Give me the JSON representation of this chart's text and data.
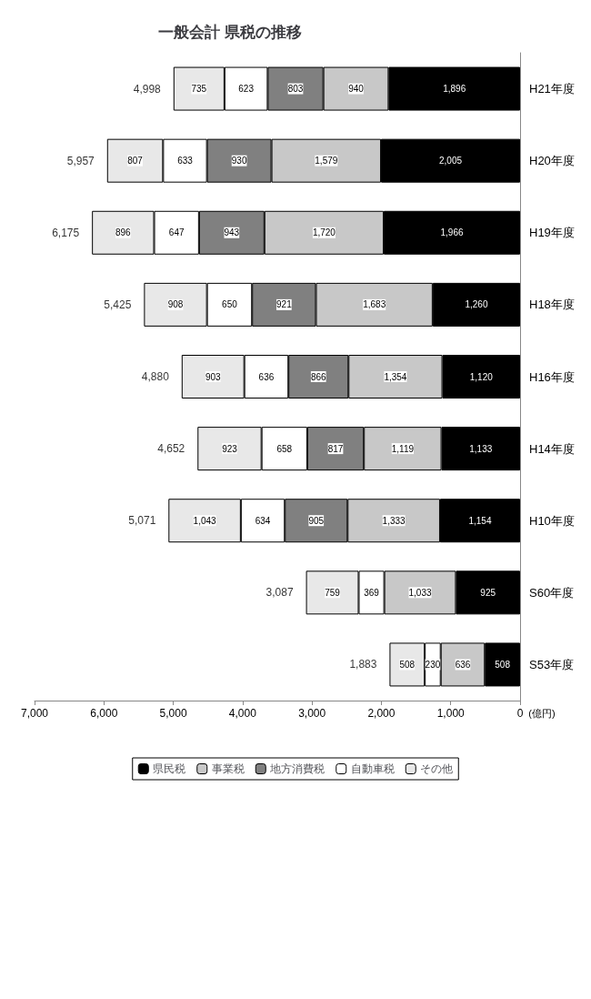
{
  "chart_data": {
    "type": "bar",
    "orientation": "horizontal",
    "title": "一般会計 県税の推移",
    "xlabel": "(億円)",
    "categories": [
      "H21年度",
      "H20年度",
      "H19年度",
      "H18年度",
      "H16年度",
      "H14年度",
      "H10年度",
      "S60年度",
      "S53年度"
    ],
    "series": [
      {
        "name": "県民税",
        "color": "#000000",
        "values": [
          1896,
          2005,
          1966,
          1260,
          1120,
          1133,
          1154,
          925,
          508
        ],
        "value_labels": [
          "1,896",
          "2,005",
          "1,966",
          "1,260",
          "1,120",
          "1,133",
          "1,154",
          "925",
          "508"
        ]
      },
      {
        "name": "事業税",
        "color": "#c8c8c8",
        "values": [
          940,
          1579,
          1720,
          1683,
          1354,
          1119,
          1333,
          1033,
          636
        ],
        "value_labels": [
          "940",
          "1,579",
          "1,720",
          "1,683",
          "1,354",
          "1,119",
          "1,333",
          "1,033",
          "636"
        ]
      },
      {
        "name": "地方消費税",
        "color": "#808080",
        "values": [
          803,
          930,
          943,
          921,
          866,
          817,
          905,
          null,
          null
        ],
        "value_labels": [
          "803",
          "930",
          "943",
          "921",
          "866",
          "817",
          "905",
          null,
          null
        ]
      },
      {
        "name": "自動車税",
        "color": "#ffffff",
        "values": [
          623,
          633,
          647,
          650,
          636,
          658,
          634,
          369,
          230
        ],
        "value_labels": [
          "623",
          "633",
          "647",
          "650",
          "636",
          "658",
          "634",
          "369",
          "230"
        ]
      },
      {
        "name": "その他",
        "color": "#e8e8e8",
        "values": [
          735,
          807,
          896,
          908,
          903,
          923,
          1043,
          759,
          508
        ],
        "value_labels": [
          "735",
          "807",
          "896",
          "908",
          "903",
          "923",
          "1,043",
          "759",
          "508"
        ]
      }
    ],
    "stacked": true,
    "totals": [
      "4,998",
      "5,957",
      "6,175",
      "5,425",
      "4,880",
      "4,652",
      "5,071",
      "3,087",
      "1,883"
    ],
    "xlim": [
      7000,
      0
    ],
    "xticks": [
      {
        "value": 0,
        "label": "0"
      },
      {
        "value": 1000,
        "label": "1,000"
      },
      {
        "value": 2000,
        "label": "2,000"
      },
      {
        "value": 3000,
        "label": "3,000"
      },
      {
        "value": 4000,
        "label": "4,000"
      },
      {
        "value": 5000,
        "label": "5,000"
      },
      {
        "value": 6000,
        "label": "6,000"
      },
      {
        "value": 7000,
        "label": "7,000"
      }
    ],
    "grid": false,
    "legend": "bottom"
  }
}
